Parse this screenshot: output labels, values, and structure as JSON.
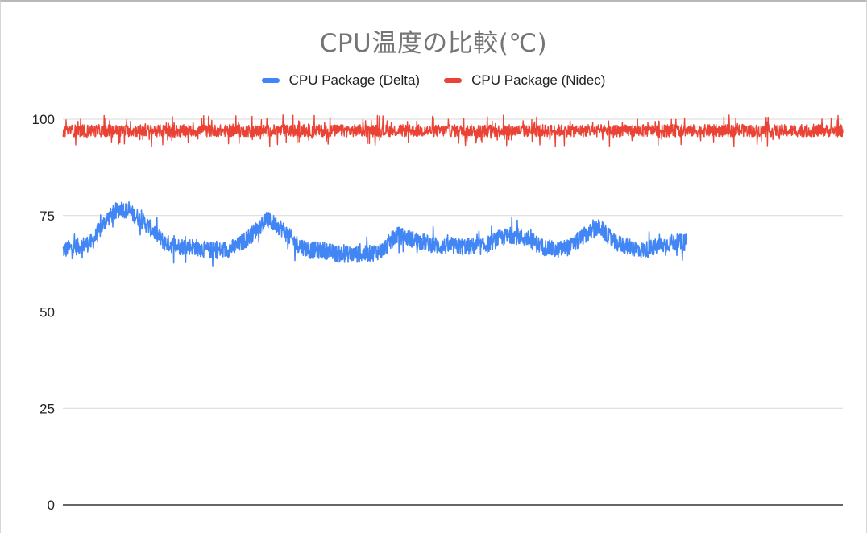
{
  "chart_data": {
    "type": "line",
    "title": "CPU温度の比較(℃)",
    "xlabel": "",
    "ylabel": "",
    "ylim": [
      0,
      100
    ],
    "yticks": [
      100,
      75,
      50,
      25,
      0
    ],
    "grid": true,
    "legend_position": "top",
    "series": [
      {
        "name": "CPU Package (Delta)",
        "color": "#4285f4",
        "values": [
          66,
          67,
          68,
          74,
          77,
          75,
          72,
          68,
          67,
          67,
          66,
          66,
          67,
          70,
          74,
          72,
          68,
          66,
          66,
          65,
          65,
          65,
          66,
          70,
          69,
          68,
          67,
          67,
          67,
          67,
          69,
          70,
          69,
          67,
          66,
          67,
          70,
          72,
          68,
          67,
          66,
          67,
          68,
          68
        ]
      },
      {
        "name": "CPU Package (Nidec)",
        "color": "#ea4335",
        "values": [
          97,
          97,
          97,
          97,
          97,
          97,
          97,
          97,
          97,
          97,
          97,
          97,
          97,
          97,
          97,
          97,
          97,
          97,
          97,
          97,
          97,
          97,
          97,
          97,
          97,
          97,
          97,
          97,
          97,
          97,
          97,
          97,
          97,
          97,
          97,
          97,
          97,
          97,
          97,
          97,
          97,
          97,
          97,
          97,
          97,
          97,
          97,
          97,
          97,
          97,
          97,
          97,
          97,
          97,
          97
        ]
      }
    ]
  }
}
